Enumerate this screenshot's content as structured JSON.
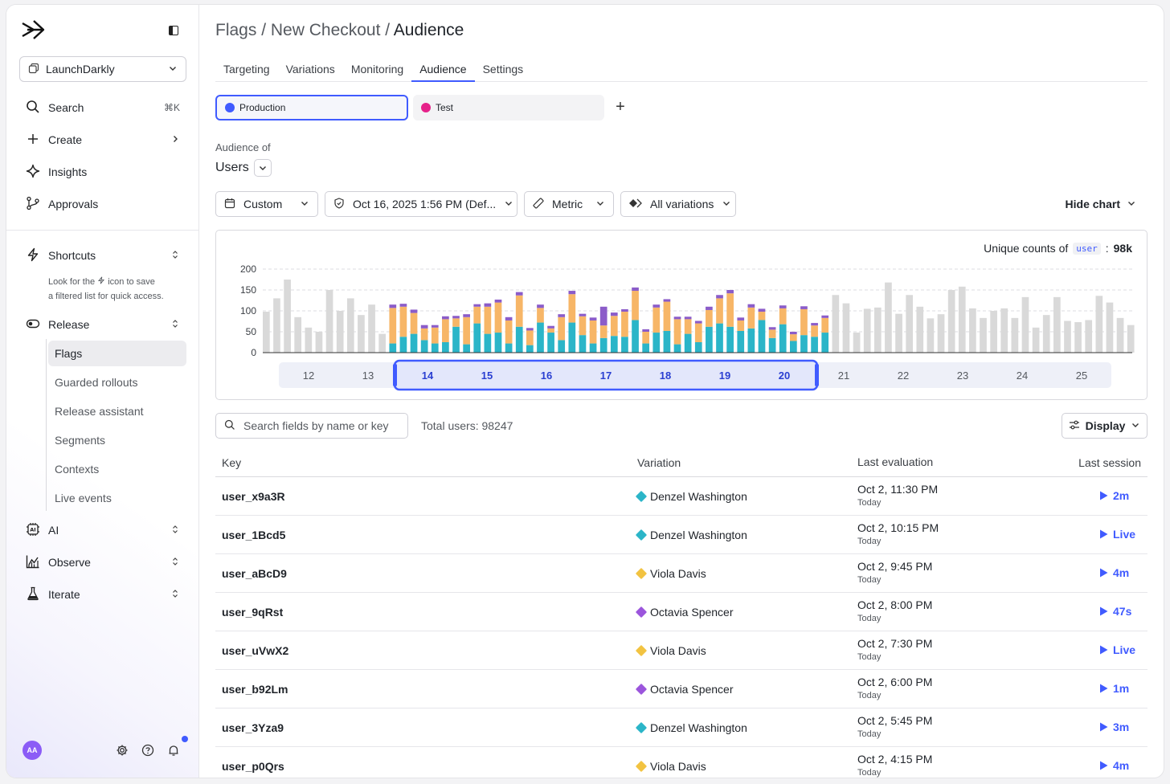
{
  "sidebar": {
    "project": "LaunchDarkly",
    "search_label": "Search",
    "search_shortcut": "⌘K",
    "create_label": "Create",
    "insights_label": "Insights",
    "approvals_label": "Approvals",
    "shortcuts_label": "Shortcuts",
    "shortcuts_hint_1": "Look for the",
    "shortcuts_hint_2": "icon to save",
    "shortcuts_hint_3": "a filtered list for quick access.",
    "release_label": "Release",
    "release_items": [
      "Flags",
      "Guarded rollouts",
      "Release assistant",
      "Segments",
      "Contexts",
      "Live events"
    ],
    "ai_label": "AI",
    "observe_label": "Observe",
    "iterate_label": "Iterate",
    "avatar_initials": "AA"
  },
  "header": {
    "crumb_1": "Flags",
    "crumb_2": "New Checkout",
    "crumb_current": "Audience",
    "sep": " / "
  },
  "tabs": [
    "Targeting",
    "Variations",
    "Monitoring",
    "Audience",
    "Settings"
  ],
  "environments": {
    "production": "Production",
    "test": "Test",
    "production_color": "#405bff",
    "test_color": "#e6228a"
  },
  "audience": {
    "label": "Audience of",
    "value": "Users"
  },
  "filters": {
    "range": "Custom",
    "date": "Oct 16, 2025 1:56 PM (Def...",
    "metric": "Metric",
    "variations": "All variations",
    "hide_chart": "Hide chart"
  },
  "chart": {
    "unique_prefix": "Unique counts of",
    "unique_code": "user",
    "unique_value": "98k"
  },
  "chart_data": {
    "type": "bar",
    "stacked": true,
    "yticks": [
      0,
      50,
      100,
      150,
      200
    ],
    "ylim": [
      0,
      200
    ],
    "day_labels": [
      "12",
      "13",
      "14",
      "15",
      "16",
      "17",
      "18",
      "19",
      "20",
      "21",
      "22",
      "23",
      "24",
      "25"
    ],
    "selected_days": [
      "14",
      "15",
      "16",
      "17",
      "18",
      "19",
      "20"
    ],
    "colors": {
      "inactive": "#d9d9d9",
      "denzel": "#2bb5c8",
      "viola": "#f7b667",
      "octavia": "#8b5cc9"
    },
    "before": [
      98,
      130,
      175,
      85,
      60,
      50,
      150,
      100,
      130,
      90,
      115,
      45
    ],
    "selected": [
      {
        "denzel": 22,
        "viola": 85,
        "octavia": 8
      },
      {
        "denzel": 38,
        "viola": 72,
        "octavia": 7
      },
      {
        "denzel": 45,
        "viola": 50,
        "octavia": 8
      },
      {
        "denzel": 30,
        "viola": 28,
        "octavia": 8
      },
      {
        "denzel": 22,
        "viola": 38,
        "octavia": 6
      },
      {
        "denzel": 25,
        "viola": 55,
        "octavia": 7
      },
      {
        "denzel": 62,
        "viola": 20,
        "octavia": 6
      },
      {
        "denzel": 20,
        "viola": 65,
        "octavia": 7
      },
      {
        "denzel": 70,
        "viola": 40,
        "octavia": 6
      },
      {
        "denzel": 45,
        "viola": 65,
        "octavia": 8
      },
      {
        "denzel": 48,
        "viola": 72,
        "octavia": 7
      },
      {
        "denzel": 22,
        "viola": 55,
        "octavia": 8
      },
      {
        "denzel": 62,
        "viola": 75,
        "octavia": 8
      },
      {
        "denzel": 18,
        "viola": 35,
        "octavia": 6
      },
      {
        "denzel": 72,
        "viola": 35,
        "octavia": 8
      },
      {
        "denzel": 48,
        "viola": 10,
        "octavia": 6
      },
      {
        "denzel": 30,
        "viola": 55,
        "octavia": 7
      },
      {
        "denzel": 72,
        "viola": 68,
        "octavia": 8
      },
      {
        "denzel": 42,
        "viola": 45,
        "octavia": 6
      },
      {
        "denzel": 22,
        "viola": 55,
        "octavia": 7
      },
      {
        "denzel": 35,
        "viola": 30,
        "octavia": 45
      },
      {
        "denzel": 40,
        "viola": 48,
        "octavia": 8
      },
      {
        "denzel": 38,
        "viola": 60,
        "octavia": 6
      },
      {
        "denzel": 78,
        "viola": 70,
        "octavia": 8
      },
      {
        "denzel": 22,
        "viola": 28,
        "octavia": 6
      },
      {
        "denzel": 48,
        "viola": 60,
        "octavia": 7
      },
      {
        "denzel": 52,
        "viola": 70,
        "octavia": 6
      },
      {
        "denzel": 20,
        "viola": 60,
        "octavia": 6
      },
      {
        "denzel": 45,
        "viola": 35,
        "octavia": 6
      },
      {
        "denzel": 25,
        "viola": 45,
        "octavia": 6
      },
      {
        "denzel": 62,
        "viola": 40,
        "octavia": 8
      },
      {
        "denzel": 70,
        "viola": 60,
        "octavia": 8
      },
      {
        "denzel": 62,
        "viola": 80,
        "octavia": 8
      },
      {
        "denzel": 52,
        "viola": 25,
        "octavia": 7
      },
      {
        "denzel": 58,
        "viola": 50,
        "octavia": 8
      },
      {
        "denzel": 78,
        "viola": 20,
        "octavia": 7
      },
      {
        "denzel": 35,
        "viola": 20,
        "octavia": 6
      },
      {
        "denzel": 68,
        "viola": 38,
        "octavia": 7
      },
      {
        "denzel": 28,
        "viola": 16,
        "octavia": 6
      },
      {
        "denzel": 42,
        "viola": 62,
        "octavia": 7
      },
      {
        "denzel": 38,
        "viola": 27,
        "octavia": 6
      },
      {
        "denzel": 48,
        "viola": 35,
        "octavia": 6
      }
    ],
    "after": [
      138,
      118,
      48,
      105,
      108,
      168,
      93,
      138,
      110,
      82,
      92,
      150,
      158,
      106,
      83,
      100,
      106,
      83,
      133,
      60,
      90,
      133,
      76,
      73,
      78,
      136,
      120,
      83,
      66
    ]
  },
  "table": {
    "search_placeholder": "Search fields by name or key",
    "total": "Total users: 98247",
    "display_label": "Display",
    "columns": {
      "key": "Key",
      "variation": "Variation",
      "last_eval": "Last evaluation",
      "last_session": "Last session"
    },
    "rows": [
      {
        "key": "user_x9a3R",
        "variation": "Denzel Washington",
        "color": "#2bb5c8",
        "eval": "Oct 2, 11:30 PM",
        "eval_sub": "Today",
        "session": "2m"
      },
      {
        "key": "user_1Bcd5",
        "variation": "Denzel Washington",
        "color": "#2bb5c8",
        "eval": "Oct 2, 10:15 PM",
        "eval_sub": "Today",
        "session": "Live"
      },
      {
        "key": "user_aBcD9",
        "variation": "Viola Davis",
        "color": "#f2c341",
        "eval": "Oct 2, 9:45 PM",
        "eval_sub": "Today",
        "session": "4m"
      },
      {
        "key": "user_9qRst",
        "variation": "Octavia Spencer",
        "color": "#9b55dc",
        "eval": "Oct 2, 8:00 PM",
        "eval_sub": "Today",
        "session": "47s"
      },
      {
        "key": "user_uVwX2",
        "variation": "Viola Davis",
        "color": "#f2c341",
        "eval": "Oct 2, 7:30 PM",
        "eval_sub": "Today",
        "session": "Live"
      },
      {
        "key": "user_b92Lm",
        "variation": "Octavia Spencer",
        "color": "#9b55dc",
        "eval": "Oct 2, 6:00 PM",
        "eval_sub": "Today",
        "session": "1m"
      },
      {
        "key": "user_3Yza9",
        "variation": "Denzel Washington",
        "color": "#2bb5c8",
        "eval": "Oct 2, 5:45 PM",
        "eval_sub": "Today",
        "session": "3m"
      },
      {
        "key": "user_p0Qrs",
        "variation": "Viola Davis",
        "color": "#f2c341",
        "eval": "Oct 2, 4:15 PM",
        "eval_sub": "Today",
        "session": "4m"
      }
    ]
  }
}
